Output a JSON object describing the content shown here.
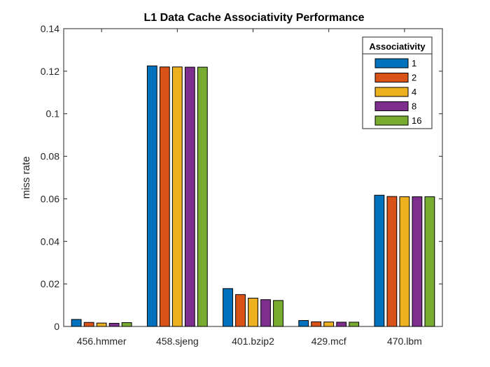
{
  "chart_data": {
    "type": "bar",
    "title": "L1 Data Cache Associativity Performance",
    "xlabel": "",
    "ylabel": "miss rate",
    "ylim": [
      0,
      0.14
    ],
    "yticks": [
      "0",
      "0.02",
      "0.04",
      "0.06",
      "0.08",
      "0.1",
      "0.12",
      "0.14"
    ],
    "categories": [
      "456.hmmer",
      "458.sjeng",
      "401.bzip2",
      "429.mcf",
      "470.lbm"
    ],
    "legend_title": "Associativity",
    "legend_position": "top-right",
    "grid": false,
    "series": [
      {
        "name": "1",
        "color": "#0072BD",
        "values": [
          0.0033,
          0.1225,
          0.0178,
          0.0028,
          0.0617
        ]
      },
      {
        "name": "2",
        "color": "#D95319",
        "values": [
          0.0019,
          0.122,
          0.015,
          0.0022,
          0.0611
        ]
      },
      {
        "name": "4",
        "color": "#EDB120",
        "values": [
          0.0016,
          0.122,
          0.0133,
          0.0021,
          0.061
        ]
      },
      {
        "name": "8",
        "color": "#7E2F8E",
        "values": [
          0.0015,
          0.1219,
          0.0126,
          0.002,
          0.061
        ]
      },
      {
        "name": "16",
        "color": "#77AC30",
        "values": [
          0.0018,
          0.1219,
          0.0122,
          0.002,
          0.061
        ]
      }
    ]
  }
}
